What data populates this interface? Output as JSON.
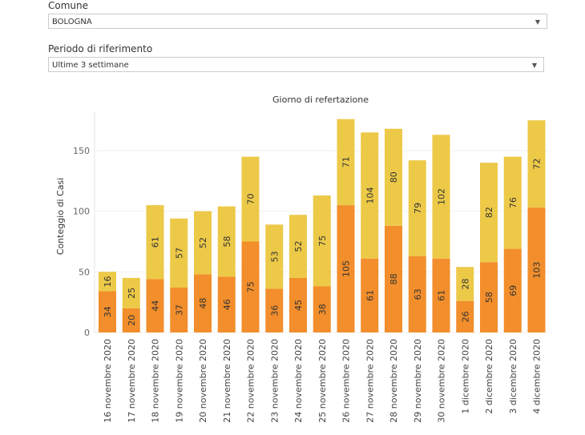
{
  "filters": {
    "comune": {
      "label": "Comune",
      "value": "BOLOGNA"
    },
    "periodo": {
      "label": "Periodo di riferimento",
      "value": "Ultime 3 settimane"
    }
  },
  "chart_data": {
    "type": "bar",
    "stacked": true,
    "title": "Giorno di refertazione",
    "xlabel": "",
    "ylabel": "Conteggio di Casi",
    "ylim": [
      0,
      185
    ],
    "yticks": [
      0,
      50,
      100,
      150
    ],
    "grid": true,
    "categories": [
      "16 novembre 2020",
      "17 novembre 2020",
      "18 novembre 2020",
      "19 novembre 2020",
      "20 novembre 2020",
      "21 novembre 2020",
      "22 novembre 2020",
      "23 novembre 2020",
      "24 novembre 2020",
      "25 novembre 2020",
      "26 novembre 2020",
      "27 novembre 2020",
      "28 novembre 2020",
      "29 novembre 2020",
      "30 novembre 2020",
      "1 dicembre 2020",
      "2 dicembre 2020",
      "3 dicembre 2020",
      "4 dicembre 2020"
    ],
    "series": [
      {
        "name": "bottom",
        "color": "#f28e2b",
        "values": [
          34,
          20,
          44,
          37,
          48,
          46,
          75,
          36,
          45,
          38,
          105,
          61,
          88,
          63,
          61,
          26,
          58,
          69,
          103
        ]
      },
      {
        "name": "top",
        "color": "#edc948",
        "values": [
          16,
          25,
          61,
          57,
          52,
          58,
          70,
          53,
          52,
          75,
          71,
          104,
          80,
          79,
          102,
          28,
          82,
          76,
          72
        ]
      }
    ]
  }
}
